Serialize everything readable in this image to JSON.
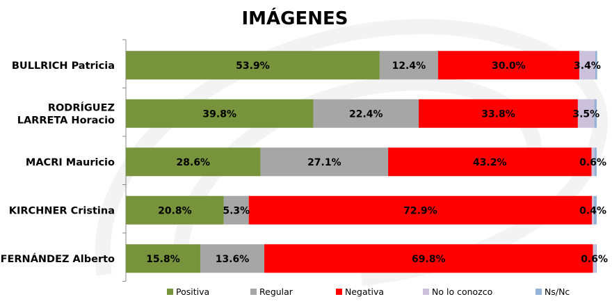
{
  "chart_data": {
    "type": "bar",
    "orientation": "horizontal",
    "stacked": true,
    "title": "IMÁGENES",
    "xlabel": "",
    "ylabel": "",
    "xlim": [
      0,
      100
    ],
    "grid": false,
    "legend_position": "bottom",
    "categories": [
      "BULLRICH Patricia",
      "RODRÍGUEZ LARRETA Horacio",
      "MACRI Mauricio",
      "KIRCHNER Cristina",
      "FERNÁNDEZ Alberto"
    ],
    "category_lines": [
      [
        "BULLRICH Patricia"
      ],
      [
        "RODRÍGUEZ",
        "LARRETA Horacio"
      ],
      [
        "MACRI Mauricio"
      ],
      [
        "KIRCHNER Cristina"
      ],
      [
        "FERNÁNDEZ Alberto"
      ]
    ],
    "series": [
      {
        "name": "Positiva",
        "color": "#77933c",
        "values": [
          53.9,
          39.8,
          28.6,
          20.8,
          15.8
        ],
        "labels": [
          "53.9%",
          "39.8%",
          "28.6%",
          "20.8%",
          "15.8%"
        ]
      },
      {
        "name": "Regular",
        "color": "#a6a6a6",
        "values": [
          12.4,
          22.4,
          27.1,
          5.3,
          13.6
        ],
        "labels": [
          "12.4%",
          "22.4%",
          "27.1%",
          "5.3%",
          "13.6%"
        ]
      },
      {
        "name": "Negativa",
        "color": "#ff0000",
        "values": [
          30.0,
          33.8,
          43.2,
          72.9,
          69.8
        ],
        "labels": [
          "30.0%",
          "33.8%",
          "43.2%",
          "72.9%",
          "69.8%"
        ]
      },
      {
        "name": "No lo conozco",
        "color": "#ccc1da",
        "values": [
          3.4,
          3.5,
          0.6,
          0.4,
          0.6
        ],
        "labels": [
          "3.4%",
          "3.5%",
          "0.6%",
          "0.4%",
          "0.6%"
        ]
      },
      {
        "name": "Ns/Nc",
        "color": "#95b3d7",
        "values": [
          0.4,
          0.5,
          0.5,
          0.6,
          0.2
        ],
        "labels": []
      }
    ]
  }
}
